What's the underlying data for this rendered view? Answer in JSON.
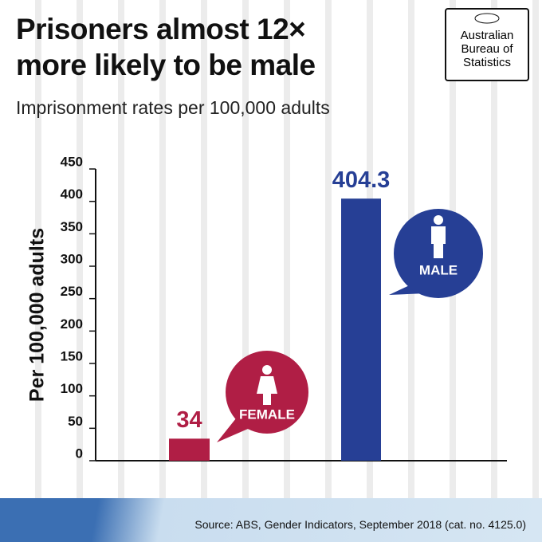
{
  "chart_data": {
    "type": "bar",
    "title": "Prisoners almost 12× more likely to be male",
    "subtitle": "Imprisonment rates per 100,000 adults",
    "y_label": "Per 100,000 adults",
    "categories": [
      "FEMALE",
      "MALE"
    ],
    "values": [
      34,
      404.3
    ],
    "colors": [
      "#b01e45",
      "#263f95"
    ],
    "ylim": [
      0,
      450
    ],
    "yticks": [
      0,
      50,
      100,
      150,
      200,
      250,
      300,
      350,
      400,
      450
    ],
    "source": "Source: ABS, Gender Indicators, September 2018 (cat. no. 4125.0)"
  },
  "logo": {
    "lines": [
      "Australian",
      "Bureau of",
      "Statistics"
    ]
  }
}
